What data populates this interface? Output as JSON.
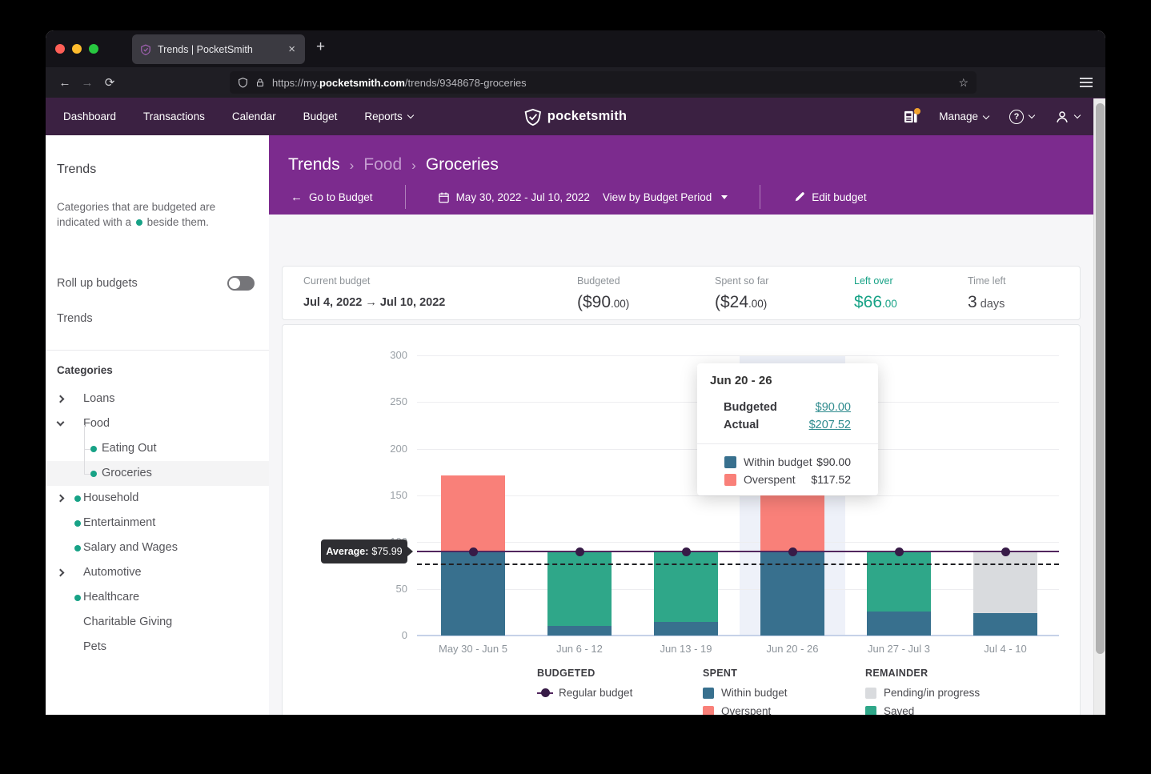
{
  "window": {
    "tab_title": "Trends | PocketSmith",
    "url": {
      "prefix": "https://my.",
      "domain": "pocketsmith.com",
      "path": "/trends/9348678-groceries"
    },
    "glyphs": {
      "close": "×",
      "new_tab": "+",
      "back": "←",
      "forward": "→",
      "reload": "⟳",
      "star": "☆"
    }
  },
  "nav": {
    "items": [
      {
        "label": "Dashboard",
        "menu": false
      },
      {
        "label": "Transactions",
        "menu": false
      },
      {
        "label": "Calendar",
        "menu": false
      },
      {
        "label": "Budget",
        "menu": false
      },
      {
        "label": "Reports",
        "menu": true
      }
    ],
    "logo_text": "pocketsmith",
    "manage_label": "Manage",
    "help_glyph": "?"
  },
  "header": {
    "breadcrumb": [
      "Trends",
      "Food",
      "Groceries"
    ],
    "separator": "›",
    "go_to_budget": "Go to Budget",
    "date_range": "May 30, 2022 - Jul 10, 2022",
    "view_by": "View by Budget Period",
    "edit_budget": "Edit budget"
  },
  "sidebar": {
    "title": "Trends",
    "desc_before": "Categories that are budgeted are indicated with a",
    "desc_after": "beside them.",
    "rollup_label": "Roll up budgets",
    "trends_link": "Trends",
    "categories_header": "Categories",
    "categories": [
      {
        "label": "Loans",
        "chevron": "right",
        "dot": false,
        "child": false,
        "selected": false
      },
      {
        "label": "Food",
        "chevron": "down",
        "dot": false,
        "child": false,
        "selected": false
      },
      {
        "label": "Eating Out",
        "chevron": "",
        "dot": true,
        "child": true,
        "selected": false
      },
      {
        "label": "Groceries",
        "chevron": "",
        "dot": true,
        "child": true,
        "selected": true
      },
      {
        "label": "Household",
        "chevron": "right",
        "dot": true,
        "child": false,
        "selected": false
      },
      {
        "label": "Entertainment",
        "chevron": "",
        "dot": true,
        "child": false,
        "selected": false
      },
      {
        "label": "Salary and Wages",
        "chevron": "",
        "dot": true,
        "child": false,
        "selected": false
      },
      {
        "label": "Automotive",
        "chevron": "right",
        "dot": false,
        "child": false,
        "selected": false
      },
      {
        "label": "Healthcare",
        "chevron": "",
        "dot": true,
        "child": false,
        "selected": false
      },
      {
        "label": "Charitable Giving",
        "chevron": "",
        "dot": false,
        "child": false,
        "selected": false
      },
      {
        "label": "Pets",
        "chevron": "",
        "dot": false,
        "child": false,
        "selected": false
      }
    ]
  },
  "summary": {
    "items": [
      {
        "label": "Current budget",
        "main": "Jul 4, 2022 → Jul 10, 2022",
        "small": "",
        "kind": "date"
      },
      {
        "label": "Budgeted",
        "main": "($90",
        "small": ".00)",
        "kind": "big"
      },
      {
        "label": "Spent so far",
        "main": "($24",
        "small": ".00)",
        "kind": "big"
      },
      {
        "label": "Left over",
        "main": "$66",
        "small": ".00",
        "kind": "teal"
      },
      {
        "label": "Time left",
        "main": "3",
        "small": " days",
        "kind": "time"
      }
    ]
  },
  "chart_data": {
    "type": "bar",
    "stacked": true,
    "categories": [
      "May 30 - Jun 5",
      "Jun 6 - 12",
      "Jun 13 - 19",
      "Jun 20 - 26",
      "Jun 27 - Jul 3",
      "Jul 4 - 10"
    ],
    "series": [
      {
        "name": "Within budget",
        "color_key": "within",
        "values": [
          90,
          10,
          15,
          90,
          26,
          24
        ]
      },
      {
        "name": "Overspent",
        "color_key": "overspent",
        "values": [
          81.4,
          0,
          0,
          117.52,
          0,
          0
        ]
      },
      {
        "name": "Saved",
        "color_key": "saved",
        "values": [
          0,
          80,
          75,
          0,
          64,
          0
        ]
      },
      {
        "name": "Pending/in progress",
        "color_key": "pending",
        "values": [
          0,
          0,
          0,
          0,
          0,
          66
        ]
      }
    ],
    "budget_line_values": [
      90,
      90,
      90,
      90,
      90,
      90
    ],
    "budget_series_name": "Regular budget",
    "average": 75.99,
    "average_label": "Average:",
    "average_value_text": "$75.99",
    "ylim": [
      0,
      300
    ],
    "yticks": [
      0,
      50,
      100,
      150,
      200,
      250,
      300
    ],
    "highlighted_index": 3,
    "grid": true,
    "legend_position": "bottom"
  },
  "tooltip": {
    "title": "Jun 20 - 26",
    "rows": [
      {
        "label": "Budgeted",
        "value": "$90.00"
      },
      {
        "label": "Actual",
        "value": "$207.52"
      }
    ],
    "breakdown": [
      {
        "label": "Within budget",
        "value": "$90.00",
        "color_key": "within"
      },
      {
        "label": "Overspent",
        "value": "$117.52",
        "color_key": "overspent"
      }
    ]
  },
  "legend": {
    "groups": [
      {
        "header": "BUDGETED",
        "items": [
          {
            "label": "Regular budget",
            "marker": "dot-line",
            "color_key": "budget_marker"
          }
        ]
      },
      {
        "header": "SPENT",
        "items": [
          {
            "label": "Within budget",
            "marker": "swatch",
            "color_key": "within"
          },
          {
            "label": "Overspent",
            "marker": "swatch",
            "color_key": "overspent"
          }
        ]
      },
      {
        "header": "REMAINDER",
        "items": [
          {
            "label": "Pending/in progress",
            "marker": "swatch",
            "color_key": "pending"
          },
          {
            "label": "Saved",
            "marker": "swatch",
            "color_key": "saved"
          }
        ]
      }
    ]
  },
  "colors": {
    "within": "#38708e",
    "overspent": "#f98079",
    "saved": "#2fa789",
    "pending": "#d9dbde",
    "budget_marker": "#371b47",
    "budget_line": "#52265e",
    "teal": "#17a286",
    "header_purple": "#7c2b8e",
    "nav_purple": "#3b2142",
    "link": "#2f8b8e",
    "highlight_band": "#eef1f9"
  }
}
